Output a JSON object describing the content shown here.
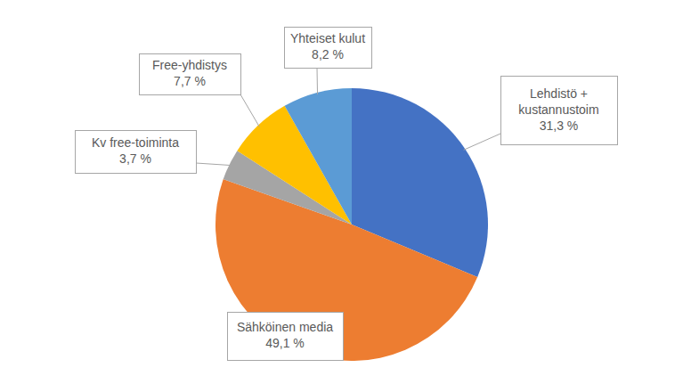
{
  "chart_data": {
    "type": "pie",
    "categories": [
      "Lehdistö + kustannustoim",
      "Sähköinen media",
      "Kv free-toiminta",
      "Free-yhdistys",
      "Yhteiset kulut"
    ],
    "values": [
      31.3,
      49.1,
      3.7,
      7.7,
      8.2
    ],
    "value_labels": [
      "31,3 %",
      "49,1 %",
      "3,7 %",
      "7,7 %",
      "8,2 %"
    ],
    "colors": [
      "#4472c4",
      "#ed7d31",
      "#a5a5a5",
      "#ffc000",
      "#5b9bd5"
    ],
    "data_labels": true
  }
}
